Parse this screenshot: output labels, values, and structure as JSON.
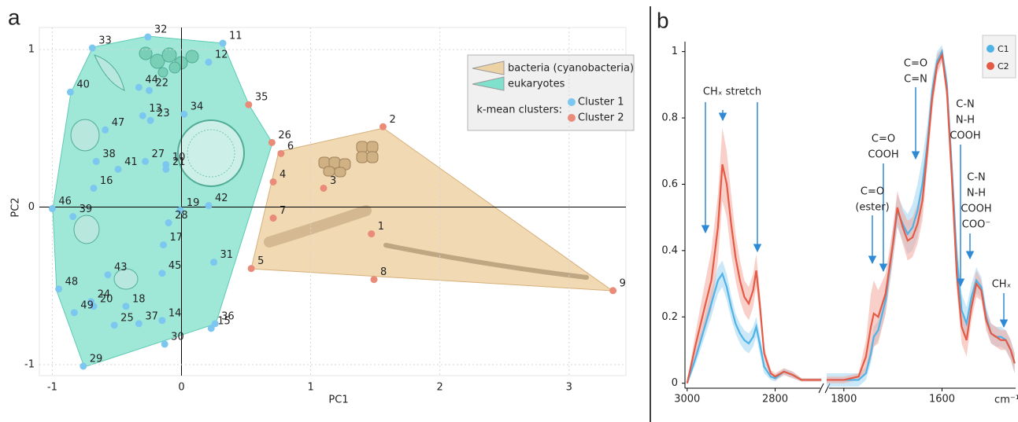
{
  "chart_data": [
    {
      "type": "scatter",
      "panel": "a",
      "xlabel": "PC1",
      "ylabel": "PC2",
      "xlim": [
        -1.1,
        3.44
      ],
      "ylim": [
        -1.07,
        1.14
      ],
      "xticks": [
        -1,
        0,
        1,
        2,
        3
      ],
      "yticks": [
        -1,
        0,
        1
      ],
      "grid": true,
      "legend_title": "k-mean clusters:",
      "legend_position": "upper right",
      "regions": [
        {
          "name": "eukaryotes",
          "color": "#7fe0cb"
        },
        {
          "name": "bacteria (cyanobacteria)",
          "color": "#edd2a6"
        }
      ],
      "series": [
        {
          "name": "Cluster 1",
          "color": "#7cc7ef",
          "point_labels": [
            "33",
            "32",
            "11",
            "12",
            "40",
            "44",
            "22",
            "13",
            "34",
            "23",
            "47",
            "38",
            "41",
            "10",
            "27",
            "21",
            "16",
            "46",
            "19",
            "42",
            "39",
            "28",
            "17",
            "31",
            "43",
            "45",
            "48",
            "24",
            "20",
            "18",
            "49",
            "25",
            "37",
            "14",
            "36",
            "15",
            "30",
            "29"
          ],
          "x": [
            -0.69,
            -0.26,
            0.32,
            0.21,
            -0.86,
            -0.33,
            -0.25,
            -0.3,
            0.02,
            -0.24,
            -0.59,
            -0.66,
            -0.49,
            -0.12,
            -0.28,
            -0.12,
            -0.68,
            -1.0,
            -0.01,
            0.21,
            -0.84,
            -0.1,
            -0.14,
            0.25,
            -0.57,
            -0.15,
            -0.95,
            -0.7,
            -0.68,
            -0.43,
            -0.83,
            -0.52,
            -0.33,
            -0.15,
            0.26,
            0.23,
            -0.13,
            -0.76
          ],
          "y": [
            1.01,
            1.08,
            1.04,
            0.92,
            0.73,
            0.76,
            0.74,
            0.58,
            0.59,
            0.55,
            0.49,
            0.29,
            0.24,
            0.27,
            0.29,
            0.24,
            0.12,
            -0.01,
            -0.02,
            0.01,
            -0.06,
            -0.1,
            -0.24,
            -0.35,
            -0.43,
            -0.42,
            -0.52,
            -0.6,
            -0.63,
            -0.63,
            -0.67,
            -0.75,
            -0.74,
            -0.72,
            -0.74,
            -0.77,
            -0.87,
            -1.01
          ]
        },
        {
          "name": "Cluster 2",
          "color": "#e98b78",
          "point_labels": [
            "35",
            "2",
            "26",
            "6",
            "4",
            "3",
            "7",
            "1",
            "5",
            "8",
            "9"
          ],
          "x": [
            0.52,
            1.56,
            0.7,
            0.77,
            0.71,
            1.1,
            0.71,
            1.47,
            0.54,
            1.49,
            3.34
          ],
          "y": [
            0.65,
            0.51,
            0.41,
            0.34,
            0.16,
            0.12,
            -0.07,
            -0.17,
            -0.39,
            -0.46,
            -0.53
          ]
        }
      ]
    },
    {
      "type": "line",
      "panel": "b",
      "xlabel": "cm⁻¹",
      "ylim": [
        -0.015,
        1.03
      ],
      "yticks": [
        0,
        0.2,
        0.4,
        0.6,
        0.8,
        1
      ],
      "legend_position": "upper right",
      "segments": [
        {
          "xlim": [
            3005,
            2690
          ],
          "xticks": [
            3000,
            2800
          ],
          "x": [
            3000,
            2980,
            2960,
            2945,
            2930,
            2920,
            2910,
            2900,
            2890,
            2880,
            2870,
            2860,
            2850,
            2843,
            2835,
            2825,
            2810,
            2800,
            2780,
            2760,
            2740,
            2720,
            2695
          ]
        },
        {
          "xlim": [
            1835,
            1450
          ],
          "xticks": [
            1800,
            1600
          ],
          "x": [
            1835,
            1800,
            1770,
            1755,
            1745,
            1739,
            1730,
            1715,
            1700,
            1691,
            1680,
            1670,
            1660,
            1650,
            1640,
            1630,
            1620,
            1610,
            1600,
            1590,
            1580,
            1570,
            1560,
            1550,
            1540,
            1530,
            1520,
            1510,
            1500,
            1490,
            1480,
            1470,
            1460,
            1452
          ]
        }
      ],
      "series": [
        {
          "name": "C1",
          "color": "#4fb3e8",
          "band_color": "#9fd6f3",
          "values": [
            [
              0.0,
              0.08,
              0.17,
              0.24,
              0.31,
              0.33,
              0.29,
              0.23,
              0.18,
              0.15,
              0.13,
              0.12,
              0.14,
              0.17,
              0.12,
              0.05,
              0.02,
              0.015,
              0.035,
              0.025,
              0.01,
              0.01,
              0.01
            ],
            [
              0.01,
              0.01,
              0.01,
              0.03,
              0.09,
              0.14,
              0.16,
              0.25,
              0.42,
              0.52,
              0.48,
              0.45,
              0.47,
              0.52,
              0.6,
              0.72,
              0.88,
              0.97,
              1.0,
              0.9,
              0.65,
              0.38,
              0.22,
              0.18,
              0.26,
              0.31,
              0.29,
              0.2,
              0.15,
              0.14,
              0.14,
              0.13,
              0.1,
              0.06
            ]
          ],
          "sd": [
            [
              0.005,
              0.02,
              0.03,
              0.04,
              0.04,
              0.04,
              0.04,
              0.035,
              0.03,
              0.03,
              0.03,
              0.03,
              0.03,
              0.03,
              0.03,
              0.02,
              0.01,
              0.01,
              0.01,
              0.01,
              0.005,
              0.005,
              0.005
            ],
            [
              0.02,
              0.02,
              0.02,
              0.02,
              0.03,
              0.03,
              0.03,
              0.04,
              0.05,
              0.05,
              0.05,
              0.06,
              0.07,
              0.08,
              0.08,
              0.06,
              0.04,
              0.03,
              0.02,
              0.03,
              0.04,
              0.05,
              0.05,
              0.05,
              0.04,
              0.04,
              0.03,
              0.03,
              0.03,
              0.03,
              0.03,
              0.03,
              0.03,
              0.03
            ]
          ]
        },
        {
          "name": "C2",
          "color": "#e55a45",
          "band_color": "#f4a89c",
          "values": [
            [
              0.0,
              0.12,
              0.23,
              0.31,
              0.47,
              0.66,
              0.6,
              0.48,
              0.38,
              0.31,
              0.26,
              0.24,
              0.28,
              0.34,
              0.24,
              0.09,
              0.03,
              0.02,
              0.035,
              0.025,
              0.01,
              0.01,
              0.01
            ],
            [
              0.01,
              0.01,
              0.02,
              0.08,
              0.17,
              0.21,
              0.2,
              0.27,
              0.42,
              0.53,
              0.47,
              0.43,
              0.44,
              0.48,
              0.55,
              0.7,
              0.86,
              0.96,
              0.99,
              0.88,
              0.62,
              0.33,
              0.17,
              0.13,
              0.23,
              0.3,
              0.28,
              0.19,
              0.15,
              0.14,
              0.13,
              0.13,
              0.1,
              0.06
            ]
          ],
          "sd": [
            [
              0.005,
              0.04,
              0.07,
              0.09,
              0.1,
              0.11,
              0.1,
              0.09,
              0.07,
              0.06,
              0.05,
              0.05,
              0.05,
              0.05,
              0.04,
              0.02,
              0.01,
              0.01,
              0.01,
              0.01,
              0.005,
              0.005,
              0.005
            ],
            [
              0.01,
              0.01,
              0.01,
              0.05,
              0.1,
              0.1,
              0.08,
              0.06,
              0.05,
              0.05,
              0.05,
              0.06,
              0.06,
              0.06,
              0.06,
              0.05,
              0.04,
              0.03,
              0.02,
              0.03,
              0.04,
              0.05,
              0.05,
              0.05,
              0.04,
              0.04,
              0.03,
              0.03,
              0.03,
              0.03,
              0.03,
              0.03,
              0.03,
              0.03
            ]
          ]
        }
      ],
      "annotations": [
        {
          "lines": [
            "CHₓ stretch"
          ]
        },
        {
          "lines": [
            "C=O",
            "COOH"
          ]
        },
        {
          "lines": [
            "C=O",
            "(ester)"
          ]
        },
        {
          "lines": [
            "C=O",
            "C=N"
          ]
        },
        {
          "lines": [
            "C-N",
            "N-H",
            "COOH"
          ]
        },
        {
          "lines": [
            "C-N",
            "N-H",
            "COOH",
            "COO⁻"
          ]
        },
        {
          "lines": [
            "CHₓ"
          ]
        }
      ]
    }
  ]
}
